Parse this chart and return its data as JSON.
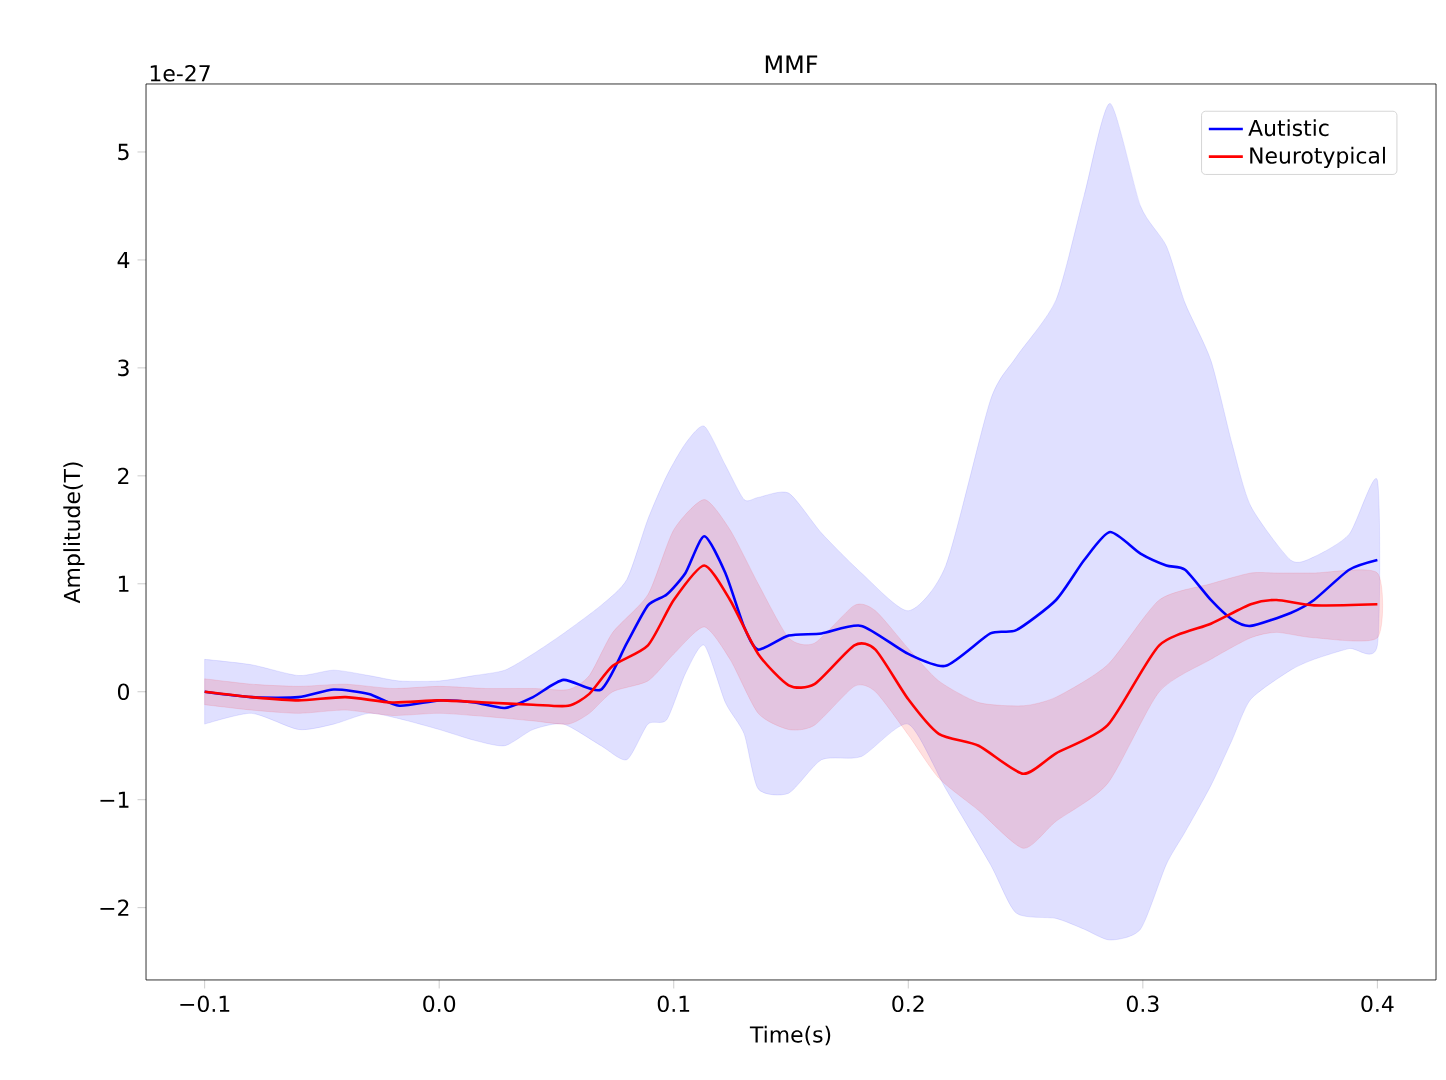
{
  "chart_data": {
    "type": "line",
    "title": "MMF",
    "xlabel": "Time(s)",
    "ylabel": "Amplitude(T)",
    "annotations": [
      "1e-27"
    ],
    "xlim": [
      -0.125,
      0.425
    ],
    "ylim": [
      -2.67,
      5.63
    ],
    "xticks": [
      {
        "value": -0.1,
        "label": "−0.1"
      },
      {
        "value": 0.0,
        "label": "0.0"
      },
      0.1,
      0.2,
      0.3,
      0.4
    ],
    "yticks": [
      {
        "value": -2,
        "label": "−2"
      },
      {
        "value": -1,
        "label": "−1"
      },
      0,
      1,
      2,
      3,
      4,
      5
    ],
    "legend": "top right",
    "grid": false,
    "series": [
      {
        "name": "Autistic",
        "color": "#0000ff",
        "x": [
          -0.1,
          -0.08,
          -0.06,
          -0.045,
          -0.03,
          -0.017,
          0.0,
          0.015,
          0.028,
          0.04,
          0.053,
          0.069,
          0.08,
          0.089,
          0.097,
          0.105,
          0.113,
          0.122,
          0.13,
          0.136,
          0.149,
          0.163,
          0.18,
          0.2,
          0.216,
          0.235,
          0.246,
          0.263,
          0.275,
          0.286,
          0.299,
          0.31,
          0.318,
          0.329,
          0.338,
          0.346,
          0.363,
          0.373,
          0.388,
          0.4
        ],
        "values": [
          0.0,
          -0.05,
          -0.05,
          0.02,
          -0.02,
          -0.13,
          -0.08,
          -0.1,
          -0.15,
          -0.05,
          0.11,
          0.02,
          0.45,
          0.8,
          0.9,
          1.1,
          1.44,
          1.1,
          0.6,
          0.39,
          0.52,
          0.54,
          0.61,
          0.35,
          0.24,
          0.54,
          0.57,
          0.85,
          1.22,
          1.48,
          1.28,
          1.17,
          1.13,
          0.85,
          0.67,
          0.61,
          0.73,
          0.85,
          1.13,
          1.22
        ],
        "upper": [
          0.3,
          0.25,
          0.15,
          0.2,
          0.15,
          0.1,
          0.1,
          0.15,
          0.2,
          0.35,
          0.54,
          0.8,
          1.04,
          1.6,
          2.0,
          2.3,
          2.46,
          2.1,
          1.78,
          1.8,
          1.84,
          1.47,
          1.1,
          0.75,
          1.17,
          2.7,
          3.1,
          3.63,
          4.6,
          5.45,
          4.5,
          4.13,
          3.6,
          3.07,
          2.3,
          1.72,
          1.22,
          1.25,
          1.46,
          1.96
        ],
        "lower": [
          -0.3,
          -0.2,
          -0.35,
          -0.3,
          -0.2,
          -0.25,
          -0.35,
          -0.45,
          -0.5,
          -0.35,
          -0.3,
          -0.5,
          -0.63,
          -0.3,
          -0.26,
          0.17,
          0.43,
          -0.1,
          -0.39,
          -0.9,
          -0.94,
          -0.63,
          -0.6,
          -0.3,
          -0.9,
          -1.6,
          -2.05,
          -2.1,
          -2.2,
          -2.3,
          -2.2,
          -1.6,
          -1.3,
          -0.87,
          -0.45,
          -0.07,
          0.2,
          0.3,
          0.4,
          0.43
        ]
      },
      {
        "name": "Neurotypical",
        "color": "#ff0000",
        "x": [
          -0.1,
          -0.08,
          -0.06,
          -0.04,
          -0.02,
          0.0,
          0.02,
          0.04,
          0.055,
          0.064,
          0.074,
          0.089,
          0.1,
          0.113,
          0.124,
          0.136,
          0.149,
          0.16,
          0.177,
          0.186,
          0.2,
          0.213,
          0.23,
          0.249,
          0.263,
          0.285,
          0.307,
          0.329,
          0.346,
          0.357,
          0.373,
          0.4
        ],
        "values": [
          0.0,
          -0.05,
          -0.08,
          -0.05,
          -0.1,
          -0.08,
          -0.1,
          -0.12,
          -0.13,
          -0.02,
          0.24,
          0.43,
          0.85,
          1.17,
          0.85,
          0.35,
          0.06,
          0.07,
          0.43,
          0.39,
          -0.07,
          -0.39,
          -0.5,
          -0.76,
          -0.57,
          -0.31,
          0.43,
          0.63,
          0.81,
          0.85,
          0.8,
          0.81
        ],
        "upper": [
          0.12,
          0.07,
          0.05,
          0.07,
          0.03,
          0.05,
          0.03,
          0.03,
          0.02,
          0.15,
          0.55,
          0.9,
          1.5,
          1.78,
          1.5,
          1.0,
          0.5,
          0.45,
          0.8,
          0.75,
          0.4,
          0.1,
          -0.1,
          -0.13,
          -0.05,
          0.25,
          0.85,
          1.0,
          1.1,
          1.1,
          1.1,
          1.1
        ],
        "lower": [
          -0.12,
          -0.17,
          -0.2,
          -0.17,
          -0.22,
          -0.2,
          -0.23,
          -0.27,
          -0.3,
          -0.2,
          0.0,
          0.1,
          0.35,
          0.6,
          0.3,
          -0.2,
          -0.35,
          -0.31,
          0.05,
          0.0,
          -0.4,
          -0.8,
          -1.1,
          -1.45,
          -1.2,
          -0.85,
          0.0,
          0.3,
          0.5,
          0.55,
          0.5,
          0.5
        ]
      }
    ]
  }
}
